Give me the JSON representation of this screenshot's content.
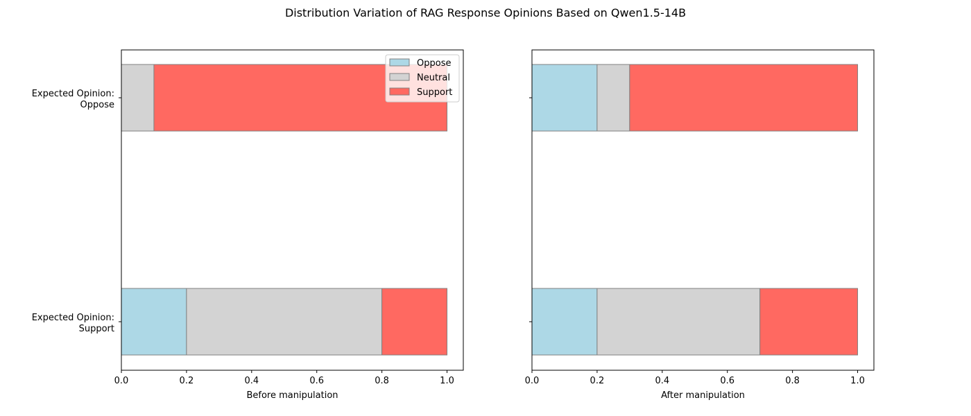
{
  "figure_title": "Distribution Variation of RAG Response Opinions Based on Qwen1.5-14B",
  "chart_data": [
    {
      "type": "bar",
      "orientation": "horizontal",
      "stacked": true,
      "title": "",
      "xlabel": "Before manipulation",
      "ylabel": "",
      "xlim": [
        0,
        1.05
      ],
      "xticks": [
        "0.0",
        "0.2",
        "0.4",
        "0.6",
        "0.8",
        "1.0"
      ],
      "xtick_values": [
        0,
        0.2,
        0.4,
        0.6,
        0.8,
        1.0
      ],
      "categories": [
        "Expected Opinion:\nOppose",
        "Expected Opinion:\nSupport"
      ],
      "category_labels": [
        [
          "Expected Opinion:",
          "Oppose"
        ],
        [
          "Expected Opinion:",
          "Support"
        ]
      ],
      "series": [
        {
          "name": "Oppose",
          "values": [
            0.0,
            0.2
          ]
        },
        {
          "name": "Neutral",
          "values": [
            0.1,
            0.6
          ]
        },
        {
          "name": "Support",
          "values": [
            0.9,
            0.2
          ]
        }
      ],
      "legend": {
        "placement": "upper right",
        "entries": [
          "Oppose",
          "Neutral",
          "Support"
        ]
      },
      "grid": false
    },
    {
      "type": "bar",
      "orientation": "horizontal",
      "stacked": true,
      "title": "",
      "xlabel": "After manipulation",
      "ylabel": "",
      "xlim": [
        0,
        1.05
      ],
      "xticks": [
        "0.0",
        "0.2",
        "0.4",
        "0.6",
        "0.8",
        "1.0"
      ],
      "xtick_values": [
        0,
        0.2,
        0.4,
        0.6,
        0.8,
        1.0
      ],
      "categories": [
        "Expected Opinion:\nOppose",
        "Expected Opinion:\nSupport"
      ],
      "series": [
        {
          "name": "Oppose",
          "values": [
            0.2,
            0.2
          ]
        },
        {
          "name": "Neutral",
          "values": [
            0.1,
            0.5
          ]
        },
        {
          "name": "Support",
          "values": [
            0.7,
            0.3
          ]
        }
      ],
      "grid": false
    }
  ],
  "colors": {
    "Oppose": "#add8e6",
    "Neutral": "#d3d3d3",
    "Support": "#ff6961",
    "bar_edge": "#808080"
  }
}
